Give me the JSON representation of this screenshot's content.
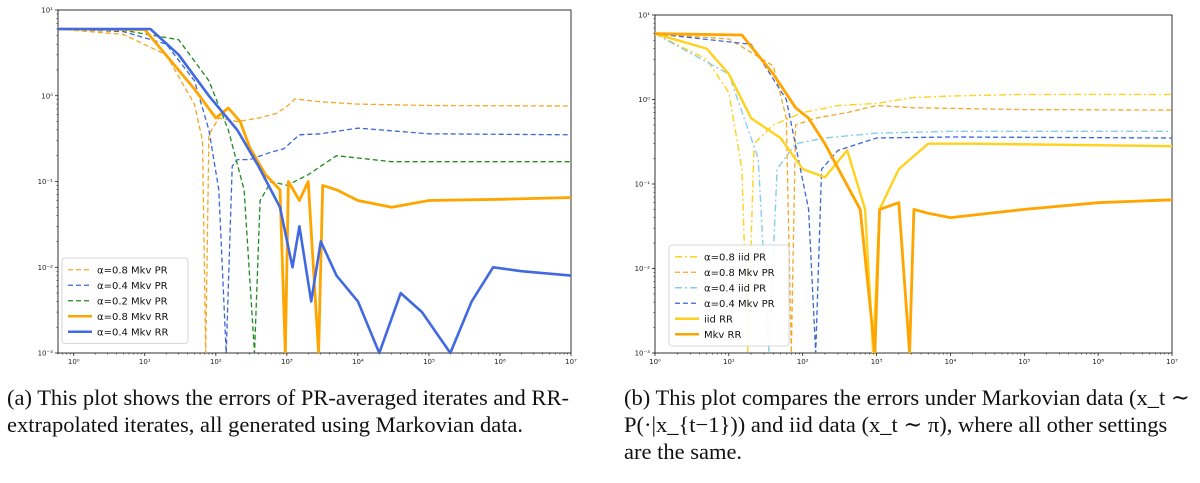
{
  "panels": {
    "a": {
      "caption": "(a) This plot shows the errors of PR-averaged iterates and RR-extrapolated iterates, all generated using Markovian data."
    },
    "b": {
      "caption": "(b) This plot compares the errors under Markovian data (x_t ∼ P(·|x_{t−1})) and iid data (x_t ∼ π), where all other settings are the same."
    }
  },
  "chart_data": [
    {
      "type": "line",
      "title": "",
      "xlabel": "",
      "ylabel": "",
      "xscale": "log",
      "yscale": "log",
      "xlim": [
        0.6,
        10000000.0
      ],
      "ylim": [
        0.001,
        10
      ],
      "xticks": [
        1,
        10,
        100,
        1000,
        10000,
        100000,
        1000000,
        10000000
      ],
      "xtick_labels": [
        "10⁰",
        "10¹",
        "10²",
        "10³",
        "10⁴",
        "10⁵",
        "10⁶",
        "10⁷"
      ],
      "yticks": [
        0.001,
        0.01,
        0.1,
        1,
        10
      ],
      "ytick_labels": [
        "10⁻³",
        "10⁻²",
        "10⁻¹",
        "10⁰",
        "10¹"
      ],
      "legend_position": "lower-left",
      "series": [
        {
          "name": "α=0.8 Mkv PR",
          "color": "#f5a623",
          "style": "dashed",
          "width": 1.3,
          "points": [
            [
              0.6,
              6
            ],
            [
              5,
              5.2
            ],
            [
              20,
              3
            ],
            [
              50,
              0.8
            ],
            [
              65,
              0.3
            ],
            [
              72,
              0.001
            ],
            [
              80,
              0.35
            ],
            [
              110,
              0.55
            ],
            [
              200,
              0.5
            ],
            [
              400,
              0.55
            ],
            [
              700,
              0.62
            ],
            [
              1000,
              0.75
            ],
            [
              1300,
              0.92
            ],
            [
              3000,
              0.85
            ],
            [
              10000,
              0.8
            ],
            [
              100000,
              0.77
            ],
            [
              10000000,
              0.76
            ]
          ]
        },
        {
          "name": "α=0.4 Mkv PR",
          "color": "#3a66d6",
          "style": "dashed",
          "width": 1.3,
          "points": [
            [
              0.6,
              6
            ],
            [
              5,
              5.6
            ],
            [
              20,
              4
            ],
            [
              50,
              1.5
            ],
            [
              80,
              0.4
            ],
            [
              110,
              0.08
            ],
            [
              140,
              0.001
            ],
            [
              170,
              0.15
            ],
            [
              200,
              0.18
            ],
            [
              300,
              0.18
            ],
            [
              600,
              0.22
            ],
            [
              900,
              0.24
            ],
            [
              1500,
              0.35
            ],
            [
              3000,
              0.36
            ],
            [
              10000,
              0.42
            ],
            [
              100000,
              0.36
            ],
            [
              10000000,
              0.35
            ]
          ]
        },
        {
          "name": "α=0.2 Mkv PR",
          "color": "#1f8a1f",
          "style": "dashed",
          "width": 1.3,
          "points": [
            [
              0.6,
              6
            ],
            [
              5,
              5.8
            ],
            [
              30,
              4.5
            ],
            [
              80,
              1.5
            ],
            [
              150,
              0.4
            ],
            [
              250,
              0.08
            ],
            [
              350,
              0.001
            ],
            [
              420,
              0.06
            ],
            [
              600,
              0.1
            ],
            [
              1000,
              0.09
            ],
            [
              2000,
              0.12
            ],
            [
              5000,
              0.2
            ],
            [
              30000,
              0.17
            ],
            [
              10000000,
              0.17
            ]
          ]
        },
        {
          "name": "α=0.8 Mkv RR",
          "color": "#ffa500",
          "style": "solid",
          "width": 2.8,
          "points": [
            [
              0.6,
              6
            ],
            [
              10,
              5.9
            ],
            [
              50,
              1.2
            ],
            [
              100,
              0.55
            ],
            [
              150,
              0.72
            ],
            [
              220,
              0.5
            ],
            [
              300,
              0.25
            ],
            [
              500,
              0.12
            ],
            [
              800,
              0.08
            ],
            [
              950,
              0.001
            ],
            [
              1050,
              0.1
            ],
            [
              1500,
              0.06
            ],
            [
              2000,
              0.1
            ],
            [
              2800,
              0.001
            ],
            [
              3200,
              0.09
            ],
            [
              5000,
              0.08
            ],
            [
              10000,
              0.06
            ],
            [
              30000,
              0.05
            ],
            [
              100000,
              0.06
            ],
            [
              1000000,
              0.062
            ],
            [
              10000000,
              0.065
            ]
          ]
        },
        {
          "name": "α=0.4 Mkv RR",
          "color": "#4169e1",
          "style": "solid",
          "width": 2.6,
          "points": [
            [
              0.6,
              6
            ],
            [
              12,
              6
            ],
            [
              30,
              3
            ],
            [
              80,
              1
            ],
            [
              200,
              0.4
            ],
            [
              400,
              0.15
            ],
            [
              800,
              0.05
            ],
            [
              1200,
              0.01
            ],
            [
              1500,
              0.03
            ],
            [
              2200,
              0.004
            ],
            [
              3000,
              0.02
            ],
            [
              5000,
              0.008
            ],
            [
              10000,
              0.004
            ],
            [
              20000,
              0.001
            ],
            [
              40000,
              0.005
            ],
            [
              80000,
              0.003
            ],
            [
              200000,
              0.001
            ],
            [
              400000,
              0.004
            ],
            [
              800000,
              0.01
            ],
            [
              2000000,
              0.009
            ],
            [
              10000000,
              0.008
            ]
          ]
        }
      ]
    },
    {
      "type": "line",
      "title": "",
      "xlabel": "",
      "ylabel": "",
      "xscale": "log",
      "yscale": "log",
      "xlim": [
        1,
        10000000.0
      ],
      "ylim": [
        0.001,
        10
      ],
      "xticks": [
        1,
        10,
        100,
        1000,
        10000,
        100000,
        1000000,
        10000000
      ],
      "xtick_labels": [
        "10⁰",
        "10¹",
        "10²",
        "10³",
        "10⁴",
        "10⁵",
        "10⁶",
        "10⁷"
      ],
      "yticks": [
        0.001,
        0.01,
        0.1,
        1,
        10
      ],
      "ytick_labels": [
        "10⁻³",
        "10⁻²",
        "10⁻¹",
        "10⁰",
        "10¹"
      ],
      "legend_position": "lower-left",
      "series": [
        {
          "name": "α=0.8 iid PR",
          "color": "#ffd21f",
          "style": "dashdot",
          "width": 1.4,
          "points": [
            [
              1,
              6
            ],
            [
              5,
              3
            ],
            [
              10,
              1.2
            ],
            [
              15,
              0.15
            ],
            [
              18,
              0.001
            ],
            [
              22,
              0.3
            ],
            [
              40,
              0.5
            ],
            [
              100,
              0.7
            ],
            [
              300,
              0.85
            ],
            [
              1000,
              0.9
            ],
            [
              3000,
              1.05
            ],
            [
              10000,
              1.1
            ],
            [
              100000,
              1.15
            ],
            [
              10000000,
              1.15
            ]
          ]
        },
        {
          "name": "α=0.8 Mkv PR",
          "color": "#f5a623",
          "style": "dashed",
          "width": 1.3,
          "points": [
            [
              1,
              6
            ],
            [
              10,
              5.2
            ],
            [
              40,
              2.5
            ],
            [
              60,
              0.6
            ],
            [
              70,
              0.001
            ],
            [
              80,
              0.5
            ],
            [
              150,
              0.6
            ],
            [
              400,
              0.7
            ],
            [
              1000,
              0.85
            ],
            [
              3000,
              0.8
            ],
            [
              100000,
              0.76
            ],
            [
              10000000,
              0.75
            ]
          ]
        },
        {
          "name": "α=0.4 iid PR",
          "color": "#87ceeb",
          "style": "dashdot",
          "width": 1.4,
          "points": [
            [
              1,
              6
            ],
            [
              10,
              2
            ],
            [
              25,
              0.2
            ],
            [
              35,
              0.001
            ],
            [
              45,
              0.15
            ],
            [
              80,
              0.3
            ],
            [
              200,
              0.35
            ],
            [
              1000,
              0.4
            ],
            [
              10000,
              0.42
            ],
            [
              10000000,
              0.42
            ]
          ]
        },
        {
          "name": "α=0.4 Mkv PR",
          "color": "#3a66d6",
          "style": "dashed",
          "width": 1.3,
          "points": [
            [
              1,
              6
            ],
            [
              20,
              4.5
            ],
            [
              60,
              1
            ],
            [
              120,
              0.05
            ],
            [
              150,
              0.001
            ],
            [
              180,
              0.15
            ],
            [
              300,
              0.25
            ],
            [
              1000,
              0.35
            ],
            [
              10000,
              0.36
            ],
            [
              10000000,
              0.35
            ]
          ]
        },
        {
          "name": "iid RR",
          "color": "#ffd21f",
          "style": "solid",
          "width": 2.4,
          "points": [
            [
              1,
              6
            ],
            [
              5,
              4
            ],
            [
              10,
              2
            ],
            [
              20,
              0.6
            ],
            [
              50,
              0.35
            ],
            [
              100,
              0.15
            ],
            [
              200,
              0.12
            ],
            [
              400,
              0.25
            ],
            [
              700,
              0.05
            ],
            [
              900,
              0.001
            ],
            [
              1100,
              0.05
            ],
            [
              2000,
              0.15
            ],
            [
              5000,
              0.3
            ],
            [
              20000,
              0.3
            ],
            [
              10000000,
              0.28
            ]
          ]
        },
        {
          "name": "Mkv RR",
          "color": "#ffa500",
          "style": "solid",
          "width": 2.8,
          "points": [
            [
              1,
              6
            ],
            [
              15,
              5.8
            ],
            [
              40,
              2
            ],
            [
              80,
              0.8
            ],
            [
              120,
              0.6
            ],
            [
              200,
              0.3
            ],
            [
              350,
              0.12
            ],
            [
              600,
              0.05
            ],
            [
              950,
              0.001
            ],
            [
              1100,
              0.05
            ],
            [
              2000,
              0.06
            ],
            [
              2800,
              0.001
            ],
            [
              3200,
              0.05
            ],
            [
              5000,
              0.045
            ],
            [
              10000,
              0.04
            ],
            [
              100000,
              0.05
            ],
            [
              1000000,
              0.06
            ],
            [
              10000000,
              0.065
            ]
          ]
        }
      ]
    }
  ]
}
